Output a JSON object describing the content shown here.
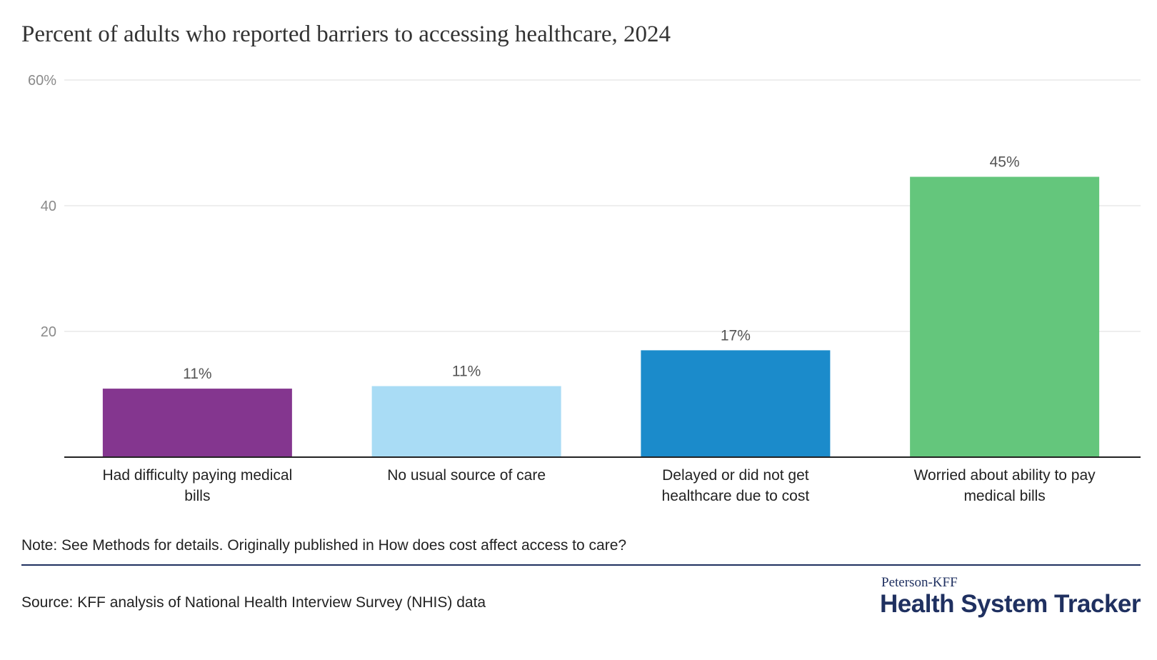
{
  "header": {
    "title": "Percent of adults who reported barriers to accessing healthcare, 2024"
  },
  "chart_data": {
    "type": "bar",
    "title": "Percent of adults who reported barriers to accessing healthcare, 2024",
    "xlabel": "",
    "ylabel": "",
    "ylim": [
      0,
      60
    ],
    "yticks": [
      20,
      40,
      60
    ],
    "ytick_labels": [
      "20",
      "40",
      "60%"
    ],
    "grid": true,
    "categories": [
      [
        "Had difficulty paying medical",
        "bills"
      ],
      [
        "No usual source of care"
      ],
      [
        "Delayed or did not get",
        "healthcare due to cost"
      ],
      [
        "Worried about ability to pay",
        "medical bills"
      ]
    ],
    "values": [
      10.9,
      11.3,
      17.0,
      44.6
    ],
    "value_labels": [
      "11%",
      "11%",
      "17%",
      "45%"
    ],
    "colors": [
      "#84368f",
      "#a9dcf5",
      "#1b8bcb",
      "#64c67c"
    ]
  },
  "footer": {
    "note": "Note: See Methods for details. Originally published in How does cost affect access to care?",
    "source": "Source: KFF analysis of National Health Interview Survey (NHIS) data",
    "logo_top": "Peterson-KFF",
    "logo_main": "Health System Tracker",
    "brand_color": "#1f3060"
  }
}
